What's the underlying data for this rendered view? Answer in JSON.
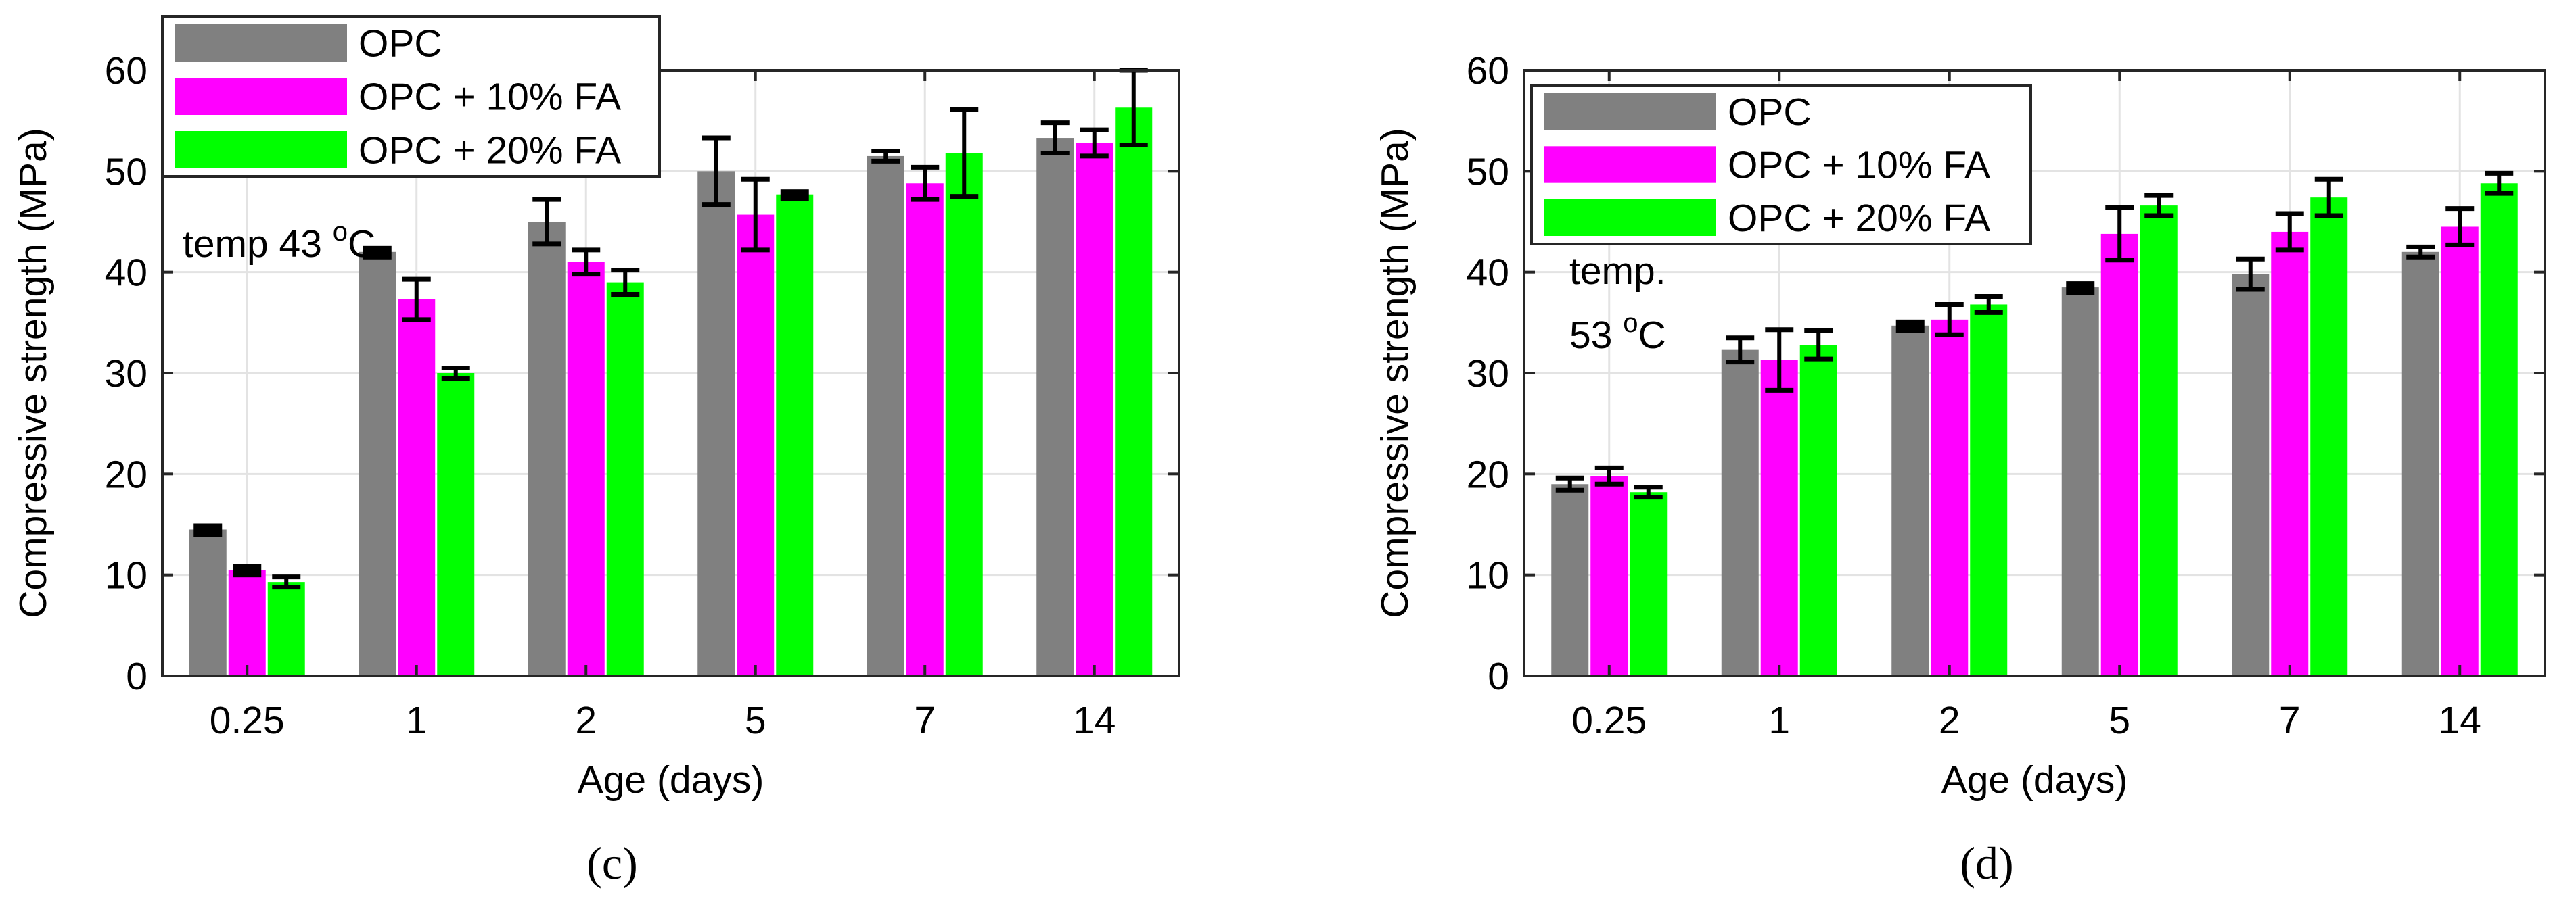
{
  "chart_data": [
    {
      "type": "bar",
      "panel_label": "(c)",
      "xlabel": "Age (days)",
      "ylabel": "Compressive strength (MPa)",
      "ylim": [
        0,
        60
      ],
      "yticks": [
        0,
        10,
        20,
        30,
        40,
        50,
        60
      ],
      "grid": true,
      "legend_position": "top-left",
      "annotation": {
        "text": "temp 43 ",
        "sup": "o",
        "tail": "C"
      },
      "categories": [
        "0.25",
        "1",
        "2",
        "5",
        "7",
        "14"
      ],
      "series": [
        {
          "name": "OPC",
          "color": "#808080",
          "values": [
            14.5,
            42.0,
            45.0,
            50.0,
            51.5,
            53.3
          ],
          "errors": [
            0.4,
            0.4,
            2.2,
            3.3,
            0.5,
            1.5
          ]
        },
        {
          "name": "OPC + 10% FA",
          "color": "#ff00ff",
          "values": [
            10.5,
            37.3,
            41.0,
            45.7,
            48.8,
            52.8
          ],
          "errors": [
            0.4,
            2.0,
            1.2,
            3.5,
            1.6,
            1.3
          ]
        },
        {
          "name": "OPC + 20% FA",
          "color": "#00ff00",
          "values": [
            9.3,
            30.0,
            39.0,
            47.7,
            51.8,
            56.3
          ],
          "errors": [
            0.5,
            0.5,
            1.2,
            0.3,
            4.3,
            3.7
          ]
        }
      ]
    },
    {
      "type": "bar",
      "panel_label": "(d)",
      "xlabel": "Age (days)",
      "ylabel": "Compressive strength (MPa)",
      "ylim": [
        0,
        60
      ],
      "yticks": [
        0,
        10,
        20,
        30,
        40,
        50,
        60
      ],
      "grid": true,
      "legend_position": "top-left",
      "annotation": {
        "line1": "temp.",
        "text": "53 ",
        "sup": "o",
        "tail": "C"
      },
      "categories": [
        "0.25",
        "1",
        "2",
        "5",
        "7",
        "14"
      ],
      "series": [
        {
          "name": "OPC",
          "color": "#808080",
          "values": [
            19.0,
            32.3,
            34.7,
            38.5,
            39.8,
            42.0
          ],
          "errors": [
            0.6,
            1.2,
            0.4,
            0.4,
            1.5,
            0.5
          ]
        },
        {
          "name": "OPC + 10% FA",
          "color": "#ff00ff",
          "values": [
            19.8,
            31.3,
            35.3,
            43.8,
            44.0,
            44.5
          ],
          "errors": [
            0.8,
            3.0,
            1.5,
            2.6,
            1.8,
            1.8
          ]
        },
        {
          "name": "OPC + 20% FA",
          "color": "#00ff00",
          "values": [
            18.2,
            32.8,
            36.8,
            46.6,
            47.4,
            48.8
          ],
          "errors": [
            0.5,
            1.4,
            0.8,
            1.0,
            1.8,
            1.0
          ]
        }
      ]
    }
  ]
}
